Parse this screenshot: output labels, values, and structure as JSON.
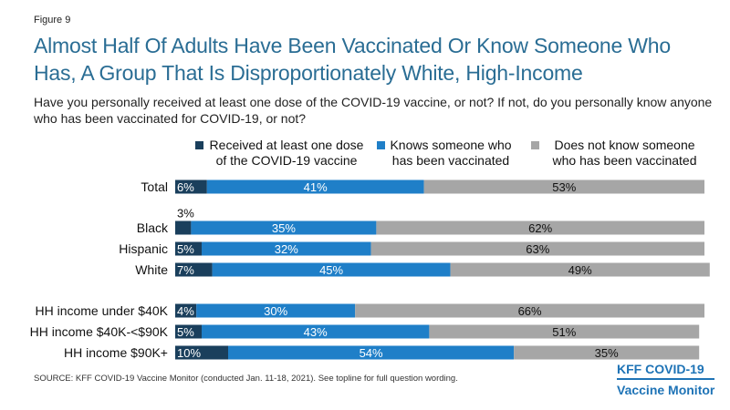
{
  "figure_label": "Figure 9",
  "title": "Almost Half Of Adults Have Been Vaccinated Or Know Someone Who Has, A Group That Is Disproportionately White, High-Income",
  "subtitle": "Have you personally received at least one dose of the COVID-19 vaccine, or not? If not, do you personally know anyone who has been vaccinated for COVID-19, or not?",
  "source": "SOURCE: KFF COVID-19 Vaccine Monitor (conducted Jan. 11-18, 2021). See topline for full question wording.",
  "logo": {
    "line1": "KFF COVID-19",
    "line2": "Vaccine Monitor"
  },
  "colors": {
    "received": "#1a3f5c",
    "knows": "#1f7fc8",
    "not_know": "#a6a6a6"
  },
  "chart_data": {
    "type": "bar",
    "orientation": "horizontal",
    "stacked": true,
    "categories": [
      "Total",
      "Black",
      "Hispanic",
      "White",
      "HH income under $40K",
      "HH income $40K-<$90K",
      "HH income $90K+"
    ],
    "series": [
      {
        "name": "Received at least one dose of the COVID-19 vaccine",
        "values": [
          6,
          3,
          5,
          7,
          4,
          5,
          10
        ]
      },
      {
        "name": "Knows someone who has been vaccinated",
        "values": [
          41,
          35,
          32,
          45,
          30,
          43,
          54
        ]
      },
      {
        "name": "Does not know someone who has been vaccinated",
        "values": [
          53,
          62,
          63,
          49,
          66,
          51,
          35
        ]
      }
    ],
    "data_labels": [
      [
        "6%",
        "41%",
        "53%"
      ],
      [
        "3%",
        "35%",
        "62%"
      ],
      [
        "5%",
        "32%",
        "63%"
      ],
      [
        "7%",
        "45%",
        "49%"
      ],
      [
        "4%",
        "30%",
        "66%"
      ],
      [
        "5%",
        "43%",
        "51%"
      ],
      [
        "10%",
        "54%",
        "35%"
      ]
    ],
    "legend": [
      "Received at least one dose of the COVID-19 vaccine",
      "Knows someone who has been vaccinated",
      "Does not know someone who has been vaccinated"
    ],
    "legend_position": "top",
    "xlim": [
      0,
      100
    ],
    "grid": false
  }
}
